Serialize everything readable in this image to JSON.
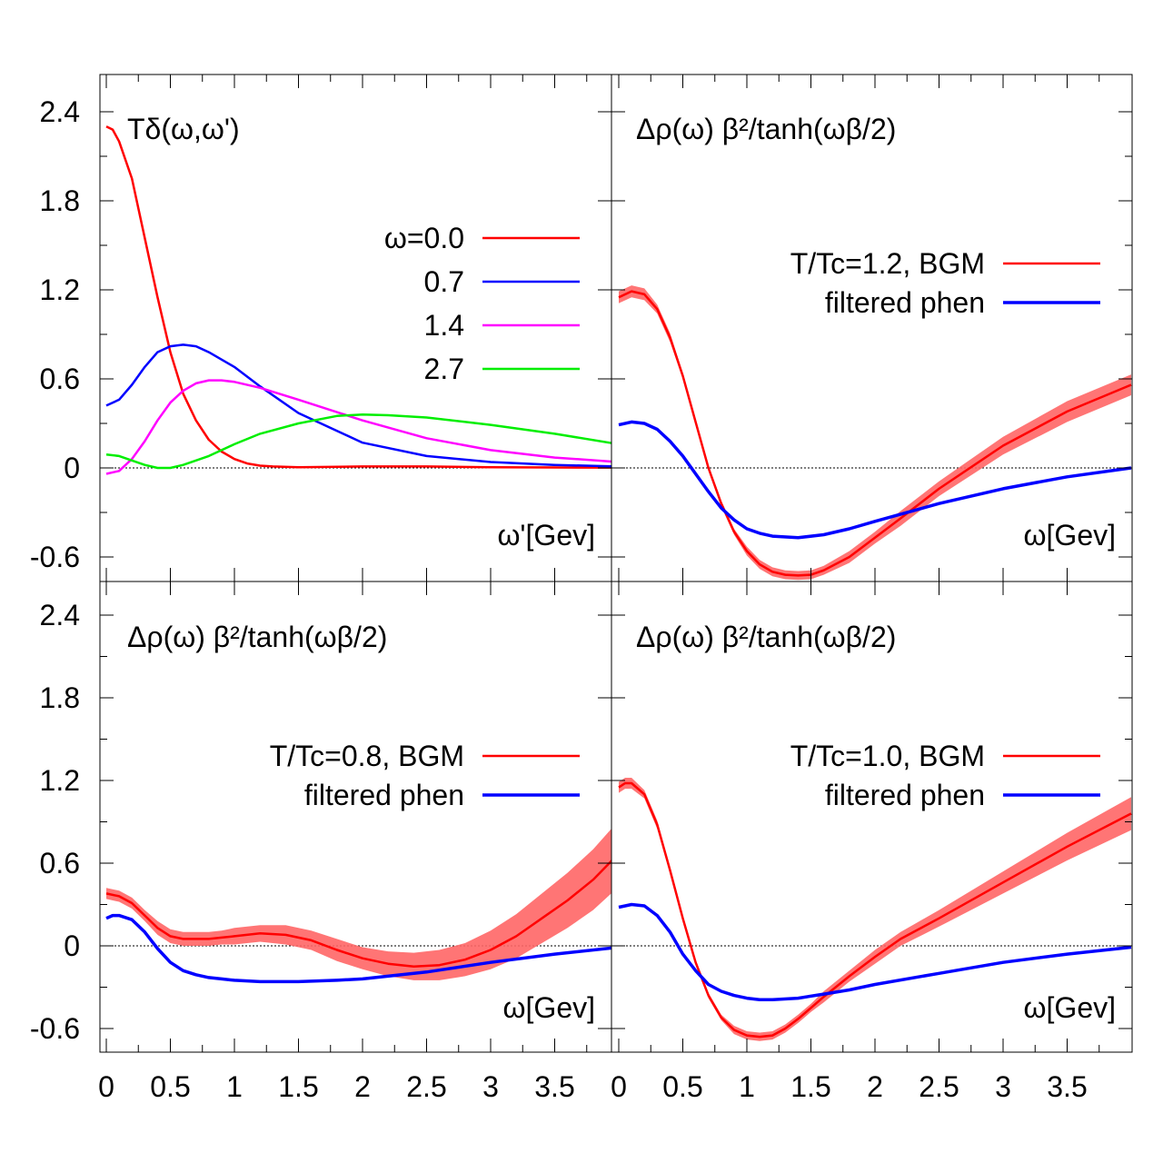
{
  "chart_data": {
    "type": "line",
    "xlim": [
      0,
      4
    ],
    "ylim": [
      -0.75,
      2.7
    ],
    "x_ticks": [
      "0",
      "0.5",
      "1",
      "1.5",
      "2",
      "2.5",
      "3",
      "3.5"
    ],
    "y_ticks": [
      "-0.6",
      "0",
      "0.6",
      "1.2",
      "1.8",
      "2.4"
    ],
    "panels": [
      {
        "title": "Tδ(ω,ω')",
        "xlabel": "ω'[Gev]",
        "legend_position": "top-right",
        "series": [
          {
            "name": "ω=0.0",
            "color": "#ff0000",
            "band": false,
            "x": [
              0,
              0.05,
              0.1,
              0.2,
              0.3,
              0.4,
              0.5,
              0.6,
              0.7,
              0.8,
              0.9,
              1.0,
              1.1,
              1.2,
              1.3,
              1.5,
              2.0,
              2.5,
              3.0,
              3.5,
              4.0
            ],
            "y": [
              2.3,
              2.28,
              2.2,
              1.95,
              1.55,
              1.15,
              0.78,
              0.5,
              0.32,
              0.19,
              0.11,
              0.06,
              0.03,
              0.015,
              0.01,
              0.005,
              0.01,
              0.01,
              0.005,
              0.003,
              0.002
            ]
          },
          {
            "name": "0.7",
            "color": "#0000ff",
            "band": false,
            "x": [
              0,
              0.1,
              0.2,
              0.3,
              0.4,
              0.5,
              0.6,
              0.7,
              0.8,
              1.0,
              1.2,
              1.5,
              2.0,
              2.5,
              3.0,
              3.5,
              4.0
            ],
            "y": [
              0.42,
              0.46,
              0.56,
              0.68,
              0.78,
              0.82,
              0.83,
              0.82,
              0.78,
              0.68,
              0.55,
              0.37,
              0.17,
              0.08,
              0.04,
              0.02,
              0.01
            ]
          },
          {
            "name": "1.4",
            "color": "#ff00ff",
            "band": false,
            "x": [
              0,
              0.1,
              0.2,
              0.3,
              0.4,
              0.5,
              0.6,
              0.7,
              0.8,
              0.9,
              1.0,
              1.2,
              1.5,
              2.0,
              2.5,
              3.0,
              3.5,
              4.0
            ],
            "y": [
              -0.04,
              -0.02,
              0.06,
              0.18,
              0.32,
              0.44,
              0.52,
              0.57,
              0.59,
              0.59,
              0.58,
              0.54,
              0.46,
              0.32,
              0.2,
              0.12,
              0.07,
              0.04
            ]
          },
          {
            "name": "2.7",
            "color": "#00ee00",
            "band": false,
            "x": [
              0,
              0.1,
              0.2,
              0.3,
              0.4,
              0.5,
              0.6,
              0.8,
              1.0,
              1.2,
              1.5,
              1.8,
              2.0,
              2.2,
              2.5,
              3.0,
              3.5,
              4.0
            ],
            "y": [
              0.09,
              0.08,
              0.05,
              0.02,
              0.0,
              0.0,
              0.02,
              0.08,
              0.16,
              0.23,
              0.3,
              0.35,
              0.36,
              0.355,
              0.34,
              0.29,
              0.23,
              0.16
            ]
          }
        ]
      },
      {
        "title": "Δρ(ω) β²/tanh(ωβ/2)",
        "xlabel": "ω[Gev]",
        "legend_position": "top-right",
        "series": [
          {
            "name": "T/Tc=1.2, BGM",
            "color": "#ff0000",
            "band": true,
            "x": [
              0,
              0.1,
              0.2,
              0.3,
              0.4,
              0.5,
              0.6,
              0.7,
              0.8,
              0.9,
              1.0,
              1.1,
              1.2,
              1.3,
              1.4,
              1.5,
              1.6,
              1.8,
              2.0,
              2.2,
              2.5,
              3.0,
              3.5,
              4.0
            ],
            "y": [
              1.15,
              1.19,
              1.17,
              1.07,
              0.88,
              0.62,
              0.31,
              0.0,
              -0.24,
              -0.43,
              -0.56,
              -0.65,
              -0.7,
              -0.72,
              -0.725,
              -0.72,
              -0.69,
              -0.6,
              -0.47,
              -0.34,
              -0.14,
              0.15,
              0.38,
              0.56
            ],
            "err": [
              0.04,
              0.04,
              0.04,
              0.03,
              0.03,
              0.02,
              0.02,
              0.02,
              0.02,
              0.02,
              0.03,
              0.03,
              0.03,
              0.03,
              0.03,
              0.03,
              0.03,
              0.04,
              0.04,
              0.05,
              0.05,
              0.06,
              0.07,
              0.07
            ]
          },
          {
            "name": "filtered phen",
            "color": "#0000ff",
            "band": false,
            "x": [
              0,
              0.1,
              0.2,
              0.3,
              0.4,
              0.5,
              0.6,
              0.7,
              0.8,
              0.9,
              1.0,
              1.1,
              1.2,
              1.4,
              1.6,
              1.8,
              2.0,
              2.5,
              3.0,
              3.5,
              4.0
            ],
            "y": [
              0.29,
              0.31,
              0.3,
              0.26,
              0.18,
              0.08,
              -0.04,
              -0.16,
              -0.27,
              -0.35,
              -0.41,
              -0.44,
              -0.46,
              -0.47,
              -0.45,
              -0.41,
              -0.36,
              -0.24,
              -0.14,
              -0.06,
              0.0
            ]
          }
        ]
      },
      {
        "title": "Δρ(ω) β²/tanh(ωβ/2)",
        "xlabel": "ω[Gev]",
        "legend_position": "top-right",
        "series": [
          {
            "name": "T/Tc=0.8, BGM",
            "color": "#ff0000",
            "band": true,
            "x": [
              0,
              0.1,
              0.2,
              0.3,
              0.4,
              0.5,
              0.6,
              0.7,
              0.8,
              0.9,
              1.0,
              1.2,
              1.4,
              1.6,
              1.8,
              2.0,
              2.2,
              2.4,
              2.6,
              2.8,
              3.0,
              3.2,
              3.4,
              3.6,
              3.8,
              4.0
            ],
            "y": [
              0.38,
              0.36,
              0.31,
              0.22,
              0.13,
              0.07,
              0.05,
              0.05,
              0.05,
              0.06,
              0.07,
              0.09,
              0.08,
              0.04,
              -0.03,
              -0.09,
              -0.13,
              -0.15,
              -0.14,
              -0.1,
              -0.03,
              0.07,
              0.2,
              0.33,
              0.48,
              0.67
            ],
            "err": [
              0.04,
              0.04,
              0.04,
              0.04,
              0.05,
              0.05,
              0.05,
              0.05,
              0.05,
              0.05,
              0.06,
              0.06,
              0.07,
              0.07,
              0.08,
              0.08,
              0.09,
              0.1,
              0.11,
              0.12,
              0.14,
              0.16,
              0.18,
              0.2,
              0.22,
              0.24
            ]
          },
          {
            "name": "filtered phen",
            "color": "#0000ff",
            "band": false,
            "x": [
              0,
              0.05,
              0.1,
              0.2,
              0.3,
              0.4,
              0.5,
              0.6,
              0.7,
              0.8,
              0.9,
              1.0,
              1.2,
              1.5,
              1.8,
              2.0,
              2.5,
              3.0,
              3.5,
              4.0
            ],
            "y": [
              0.2,
              0.22,
              0.22,
              0.19,
              0.1,
              -0.02,
              -0.12,
              -0.18,
              -0.21,
              -0.23,
              -0.24,
              -0.25,
              -0.26,
              -0.26,
              -0.25,
              -0.24,
              -0.19,
              -0.12,
              -0.06,
              -0.01
            ]
          }
        ]
      },
      {
        "title": "Δρ(ω) β²/tanh(ωβ/2)",
        "xlabel": "ω[Gev]",
        "legend_position": "top-right",
        "series": [
          {
            "name": "T/Tc=1.0, BGM",
            "color": "#ff0000",
            "band": true,
            "x": [
              0,
              0.05,
              0.1,
              0.2,
              0.3,
              0.4,
              0.5,
              0.6,
              0.7,
              0.8,
              0.9,
              1.0,
              1.1,
              1.2,
              1.3,
              1.4,
              1.5,
              1.6,
              1.8,
              2.0,
              2.2,
              2.5,
              3.0,
              3.5,
              4.0
            ],
            "y": [
              1.15,
              1.18,
              1.18,
              1.1,
              0.88,
              0.55,
              0.2,
              -0.12,
              -0.36,
              -0.52,
              -0.61,
              -0.65,
              -0.66,
              -0.65,
              -0.6,
              -0.53,
              -0.45,
              -0.37,
              -0.22,
              -0.08,
              0.05,
              0.2,
              0.46,
              0.72,
              0.96
            ],
            "err": [
              0.04,
              0.04,
              0.04,
              0.03,
              0.03,
              0.02,
              0.02,
              0.02,
              0.02,
              0.02,
              0.03,
              0.03,
              0.03,
              0.03,
              0.03,
              0.03,
              0.03,
              0.04,
              0.04,
              0.05,
              0.05,
              0.06,
              0.08,
              0.1,
              0.12
            ]
          },
          {
            "name": "filtered phen",
            "color": "#0000ff",
            "band": false,
            "x": [
              0,
              0.1,
              0.2,
              0.3,
              0.4,
              0.5,
              0.6,
              0.7,
              0.8,
              0.9,
              1.0,
              1.1,
              1.2,
              1.4,
              1.6,
              1.8,
              2.0,
              2.5,
              3.0,
              3.5,
              4.0
            ],
            "y": [
              0.28,
              0.3,
              0.29,
              0.22,
              0.1,
              -0.06,
              -0.18,
              -0.28,
              -0.33,
              -0.36,
              -0.38,
              -0.39,
              -0.39,
              -0.38,
              -0.35,
              -0.32,
              -0.28,
              -0.2,
              -0.12,
              -0.06,
              -0.01
            ]
          }
        ]
      }
    ]
  }
}
